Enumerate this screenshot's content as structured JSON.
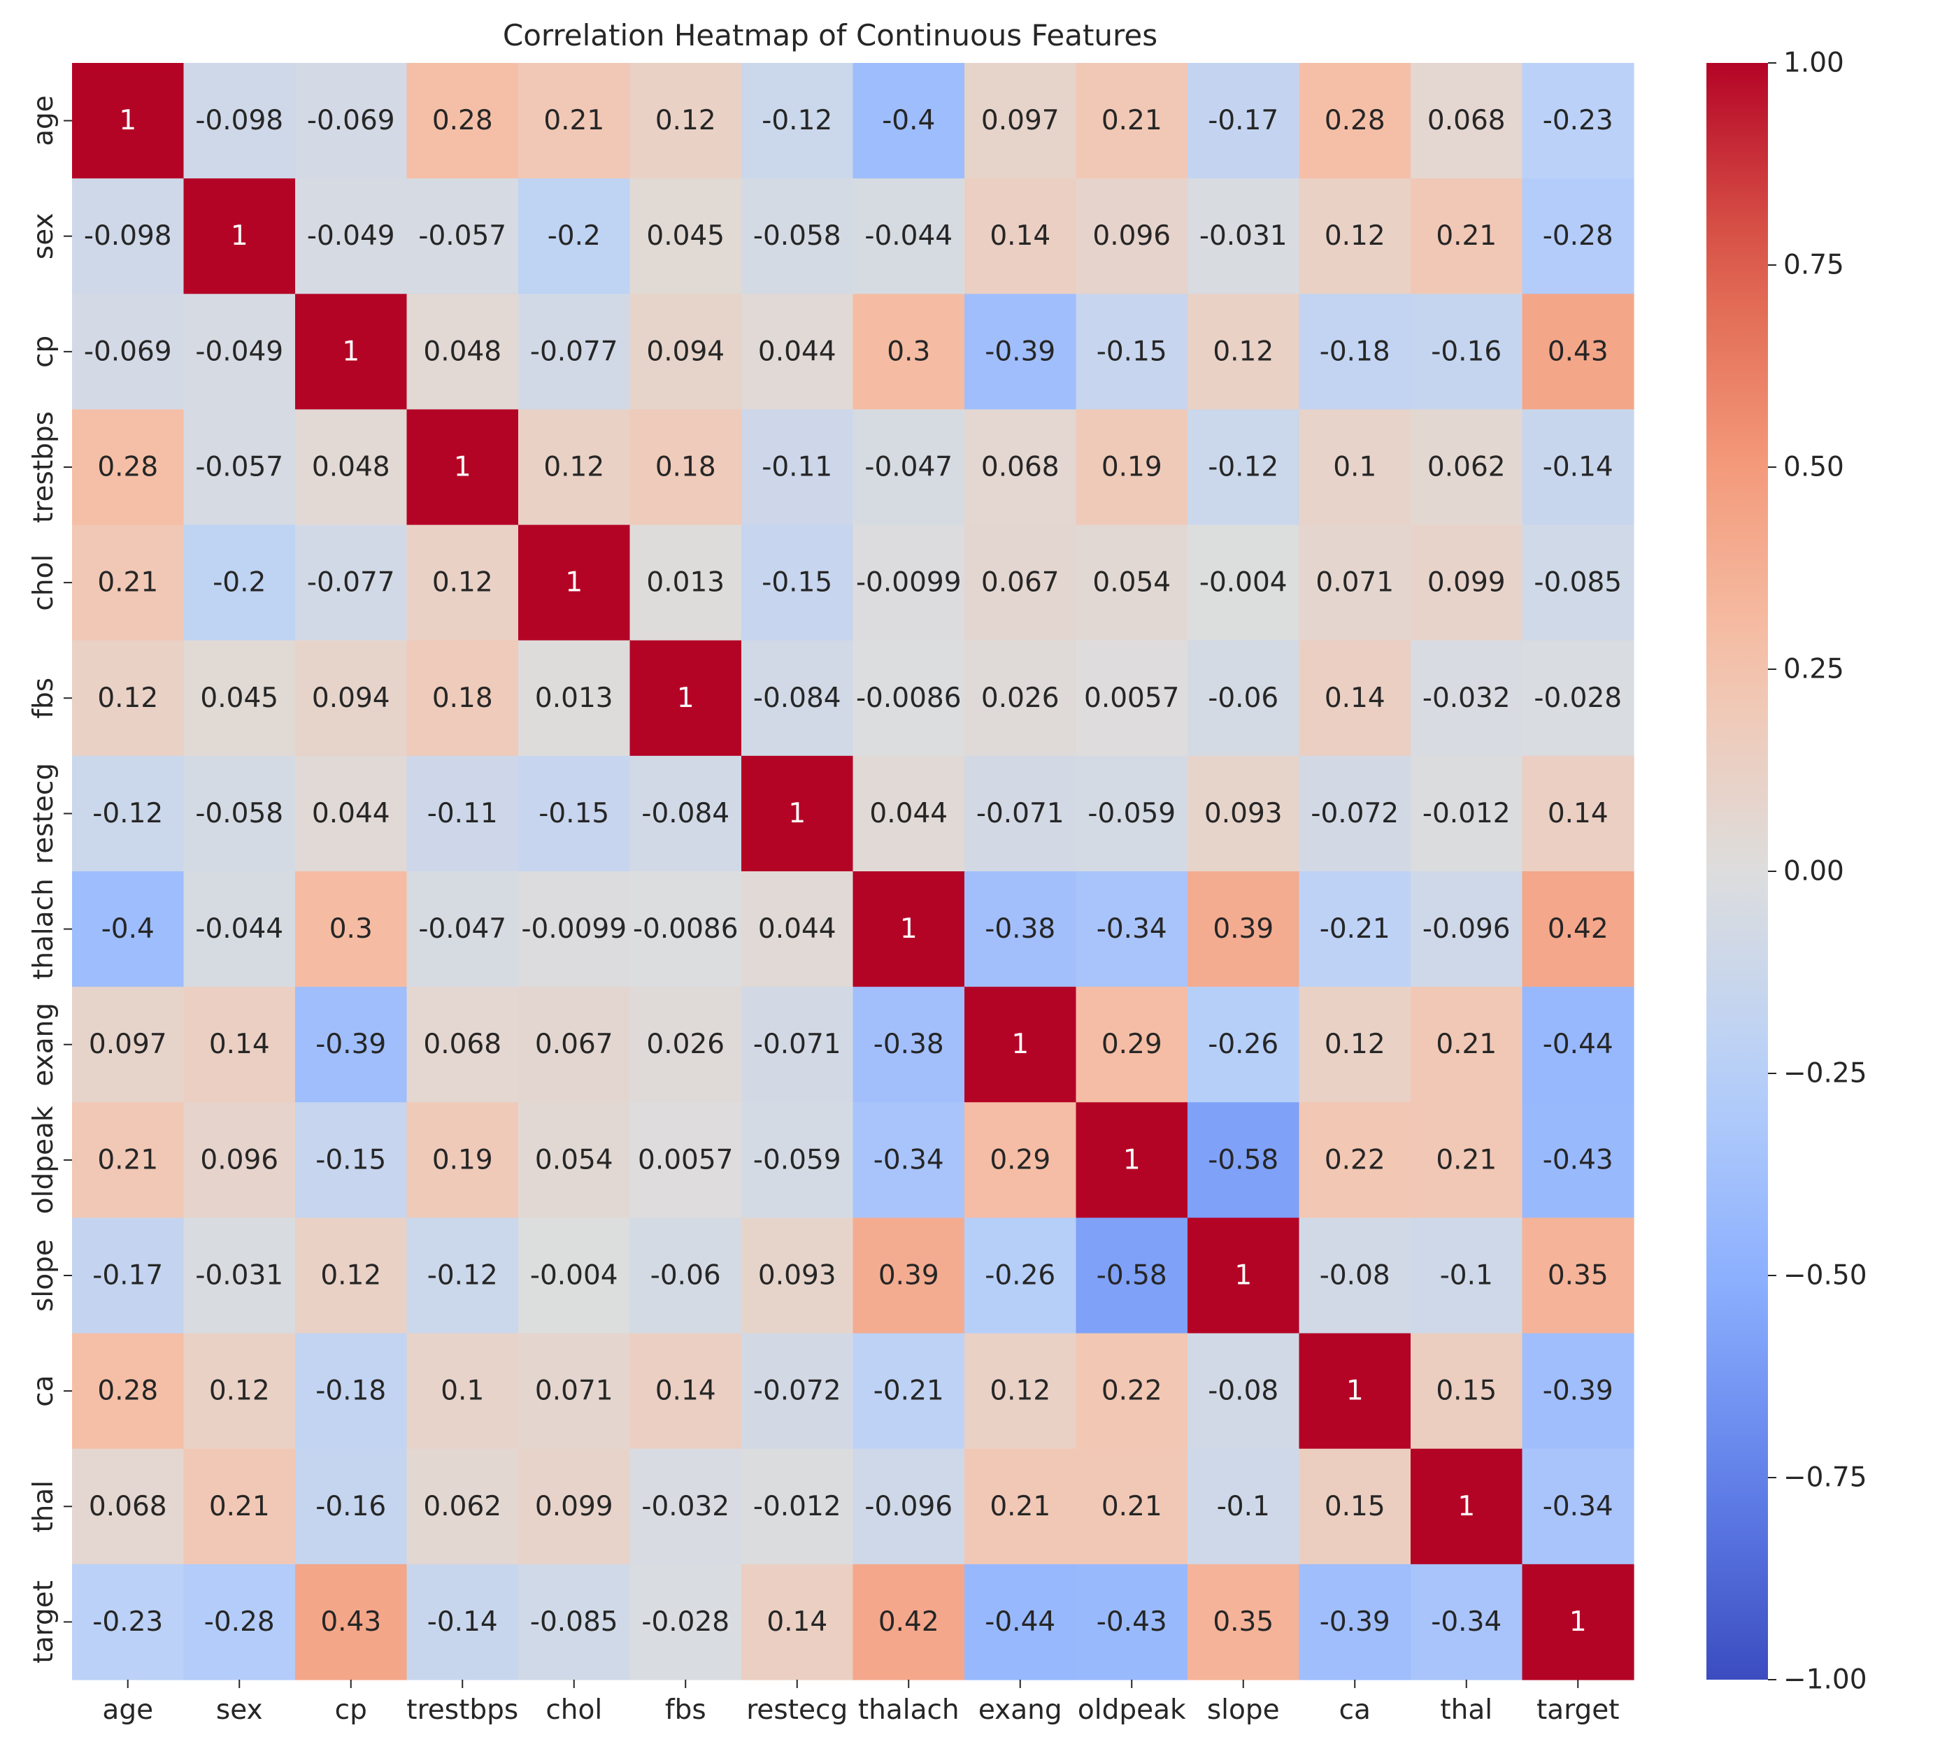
{
  "chart_data": {
    "type": "heatmap",
    "title": "Correlation Heatmap of Continuous Features",
    "xlabel": "",
    "ylabel": "",
    "labels": [
      "age",
      "sex",
      "cp",
      "trestbps",
      "chol",
      "fbs",
      "restecg",
      "thalach",
      "exang",
      "oldpeak",
      "slope",
      "ca",
      "thal",
      "target"
    ],
    "matrix": [
      [
        1,
        -0.098,
        -0.069,
        0.28,
        0.21,
        0.12,
        -0.12,
        -0.4,
        0.097,
        0.21,
        -0.17,
        0.28,
        0.068,
        -0.23
      ],
      [
        -0.098,
        1,
        -0.049,
        -0.057,
        -0.2,
        0.045,
        -0.058,
        -0.044,
        0.14,
        0.096,
        -0.031,
        0.12,
        0.21,
        -0.28
      ],
      [
        -0.069,
        -0.049,
        1,
        0.048,
        -0.077,
        0.094,
        0.044,
        0.3,
        -0.39,
        -0.15,
        0.12,
        -0.18,
        -0.16,
        0.43
      ],
      [
        0.28,
        -0.057,
        0.048,
        1,
        0.12,
        0.18,
        -0.11,
        -0.047,
        0.068,
        0.19,
        -0.12,
        0.1,
        0.062,
        -0.14
      ],
      [
        0.21,
        -0.2,
        -0.077,
        0.12,
        1,
        0.013,
        -0.15,
        -0.0099,
        0.067,
        0.054,
        -0.004,
        0.071,
        0.099,
        -0.085
      ],
      [
        0.12,
        0.045,
        0.094,
        0.18,
        0.013,
        1,
        -0.084,
        -0.0086,
        0.026,
        0.0057,
        -0.06,
        0.14,
        -0.032,
        -0.028
      ],
      [
        -0.12,
        -0.058,
        0.044,
        -0.11,
        -0.15,
        -0.084,
        1,
        0.044,
        -0.071,
        -0.059,
        0.093,
        -0.072,
        -0.012,
        0.14
      ],
      [
        -0.4,
        -0.044,
        0.3,
        -0.047,
        -0.0099,
        -0.0086,
        0.044,
        1,
        -0.38,
        -0.34,
        0.39,
        -0.21,
        -0.096,
        0.42
      ],
      [
        0.097,
        0.14,
        -0.39,
        0.068,
        0.067,
        0.026,
        -0.071,
        -0.38,
        1,
        0.29,
        -0.26,
        0.12,
        0.21,
        -0.44
      ],
      [
        0.21,
        0.096,
        -0.15,
        0.19,
        0.054,
        0.0057,
        -0.059,
        -0.34,
        0.29,
        1,
        -0.58,
        0.22,
        0.21,
        -0.43
      ],
      [
        -0.17,
        -0.031,
        0.12,
        -0.12,
        -0.004,
        -0.06,
        0.093,
        0.39,
        -0.26,
        -0.58,
        1,
        -0.08,
        -0.1,
        0.35
      ],
      [
        0.28,
        0.12,
        -0.18,
        0.1,
        0.071,
        0.14,
        -0.072,
        -0.21,
        0.12,
        0.22,
        -0.08,
        1,
        0.15,
        -0.39
      ],
      [
        0.068,
        0.21,
        -0.16,
        0.062,
        0.099,
        -0.032,
        -0.012,
        -0.096,
        0.21,
        0.21,
        -0.1,
        0.15,
        1,
        -0.34
      ],
      [
        -0.23,
        -0.28,
        0.43,
        -0.14,
        -0.085,
        -0.028,
        0.14,
        0.42,
        -0.44,
        -0.43,
        0.35,
        -0.39,
        -0.34,
        1
      ]
    ],
    "colormap": "coolwarm",
    "vmin": -1,
    "vmax": 1,
    "colorbar_ticks": [
      "1.00",
      "0.75",
      "0.50",
      "0.25",
      "0.00",
      "−0.25",
      "−0.50",
      "−0.75",
      "−1.00"
    ],
    "colorbar_tick_values": [
      1,
      0.75,
      0.5,
      0.25,
      0,
      -0.25,
      -0.5,
      -0.75,
      -1
    ],
    "annotation_text_colors": {
      "dark": "#262626",
      "light": "#ffffff"
    }
  }
}
